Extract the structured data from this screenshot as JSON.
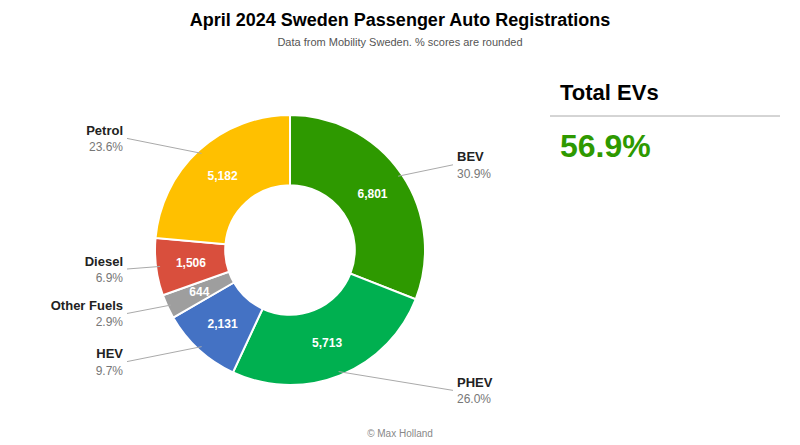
{
  "chart_data": {
    "type": "pie",
    "title": "April 2024 Sweden Passenger Auto Registrations",
    "subtitle": "Data from Mobility Sweden. % scores are rounded",
    "categories": [
      "BEV",
      "PHEV",
      "HEV",
      "Other Fuels",
      "Diesel",
      "Petrol"
    ],
    "values": [
      6801,
      5713,
      2131,
      644,
      1506,
      5182
    ],
    "value_labels": [
      "6,801",
      "5,713",
      "2,131",
      "644",
      "1,506",
      "5,182"
    ],
    "shares": [
      30.9,
      26.0,
      9.7,
      2.9,
      6.9,
      23.6
    ],
    "share_labels": [
      "30.9%",
      "26.0%",
      "9.7%",
      "2.9%",
      "6.9%",
      "23.6%"
    ],
    "colors": [
      "#2E9900",
      "#00B050",
      "#4472C4",
      "#9E9E9E",
      "#D94F3D",
      "#FFC000"
    ],
    "data_labels": true,
    "annotations": [
      "Total EVs",
      "56.9%",
      "© Max Holland"
    ]
  }
}
